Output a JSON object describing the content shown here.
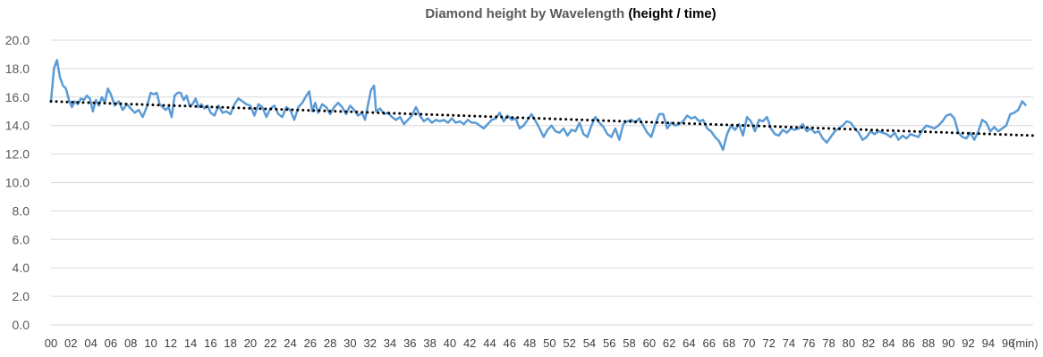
{
  "chart_data": {
    "type": "line",
    "title": "Diamond height by Wavelength",
    "title_suffix": "(height / time)",
    "x_unit_label": "(min)",
    "ylim": [
      0,
      20
    ],
    "yticks": [
      "0.0",
      "2.0",
      "4.0",
      "6.0",
      "8.0",
      "10.0",
      "12.0",
      "14.0",
      "16.0",
      "18.0",
      "20.0"
    ],
    "xticks": [
      "00",
      "02",
      "04",
      "06",
      "08",
      "10",
      "12",
      "14",
      "16",
      "18",
      "20",
      "22",
      "24",
      "26",
      "28",
      "30",
      "32",
      "34",
      "36",
      "38",
      "40",
      "42",
      "44",
      "46",
      "48",
      "50",
      "52",
      "54",
      "56",
      "58",
      "60",
      "62",
      "64",
      "66",
      "68",
      "70",
      "72",
      "74",
      "76",
      "78",
      "80",
      "82",
      "84",
      "86",
      "88",
      "90",
      "92",
      "94",
      "96"
    ],
    "xlim": [
      0,
      98.5
    ],
    "grid": true,
    "series": [
      {
        "color": "#5b9bd5",
        "points": [
          [
            0,
            15.7
          ],
          [
            0.3,
            18.0
          ],
          [
            0.6,
            18.6
          ],
          [
            0.9,
            17.4
          ],
          [
            1.2,
            16.8
          ],
          [
            1.5,
            16.6
          ],
          [
            1.8,
            15.8
          ],
          [
            2.1,
            15.3
          ],
          [
            2.4,
            15.7
          ],
          [
            2.7,
            15.5
          ],
          [
            3.0,
            15.9
          ],
          [
            3.3,
            15.8
          ],
          [
            3.6,
            16.1
          ],
          [
            3.9,
            15.9
          ],
          [
            4.2,
            15.0
          ],
          [
            4.5,
            15.8
          ],
          [
            4.8,
            15.4
          ],
          [
            5.1,
            16.0
          ],
          [
            5.4,
            15.6
          ],
          [
            5.7,
            16.6
          ],
          [
            6.0,
            16.2
          ],
          [
            6.4,
            15.4
          ],
          [
            6.8,
            15.7
          ],
          [
            7.2,
            15.1
          ],
          [
            7.6,
            15.5
          ],
          [
            8.0,
            15.2
          ],
          [
            8.4,
            14.9
          ],
          [
            8.8,
            15.1
          ],
          [
            9.2,
            14.6
          ],
          [
            9.6,
            15.3
          ],
          [
            10.0,
            16.3
          ],
          [
            10.3,
            16.2
          ],
          [
            10.6,
            16.3
          ],
          [
            10.9,
            15.5
          ],
          [
            11.2,
            15.3
          ],
          [
            11.5,
            15.1
          ],
          [
            11.8,
            15.3
          ],
          [
            12.1,
            14.6
          ],
          [
            12.4,
            16.1
          ],
          [
            12.7,
            16.3
          ],
          [
            13.0,
            16.3
          ],
          [
            13.3,
            15.8
          ],
          [
            13.6,
            16.1
          ],
          [
            13.9,
            15.4
          ],
          [
            14.2,
            15.5
          ],
          [
            14.5,
            15.9
          ],
          [
            14.8,
            15.3
          ],
          [
            15.1,
            15.5
          ],
          [
            15.4,
            15.2
          ],
          [
            15.7,
            15.4
          ],
          [
            16.0,
            14.9
          ],
          [
            16.4,
            14.7
          ],
          [
            16.8,
            15.4
          ],
          [
            17.2,
            14.9
          ],
          [
            17.6,
            15.0
          ],
          [
            18.0,
            14.8
          ],
          [
            18.4,
            15.5
          ],
          [
            18.8,
            15.9
          ],
          [
            19.2,
            15.7
          ],
          [
            19.6,
            15.5
          ],
          [
            20.0,
            15.4
          ],
          [
            20.4,
            14.7
          ],
          [
            20.8,
            15.5
          ],
          [
            21.2,
            15.3
          ],
          [
            21.6,
            14.6
          ],
          [
            22.0,
            15.2
          ],
          [
            22.4,
            15.4
          ],
          [
            22.8,
            14.8
          ],
          [
            23.2,
            14.6
          ],
          [
            23.6,
            15.3
          ],
          [
            24.0,
            15.1
          ],
          [
            24.4,
            14.4
          ],
          [
            24.8,
            15.3
          ],
          [
            25.2,
            15.6
          ],
          [
            25.6,
            16.1
          ],
          [
            25.9,
            16.4
          ],
          [
            26.2,
            15.0
          ],
          [
            26.5,
            15.6
          ],
          [
            26.8,
            14.9
          ],
          [
            27.2,
            15.5
          ],
          [
            27.6,
            15.3
          ],
          [
            28.0,
            14.8
          ],
          [
            28.4,
            15.3
          ],
          [
            28.8,
            15.6
          ],
          [
            29.2,
            15.3
          ],
          [
            29.6,
            14.8
          ],
          [
            30.0,
            15.4
          ],
          [
            30.4,
            15.1
          ],
          [
            30.8,
            14.7
          ],
          [
            31.2,
            14.9
          ],
          [
            31.5,
            14.4
          ],
          [
            31.8,
            15.5
          ],
          [
            32.1,
            16.5
          ],
          [
            32.4,
            16.8
          ],
          [
            32.6,
            15.0
          ],
          [
            33.0,
            15.2
          ],
          [
            33.4,
            14.8
          ],
          [
            33.8,
            14.9
          ],
          [
            34.2,
            14.6
          ],
          [
            34.6,
            14.4
          ],
          [
            35.0,
            14.6
          ],
          [
            35.4,
            14.1
          ],
          [
            35.8,
            14.4
          ],
          [
            36.2,
            14.7
          ],
          [
            36.6,
            15.3
          ],
          [
            37.0,
            14.7
          ],
          [
            37.4,
            14.3
          ],
          [
            37.8,
            14.5
          ],
          [
            38.2,
            14.2
          ],
          [
            38.6,
            14.4
          ],
          [
            39.0,
            14.3
          ],
          [
            39.4,
            14.4
          ],
          [
            39.8,
            14.2
          ],
          [
            40.2,
            14.5
          ],
          [
            40.6,
            14.2
          ],
          [
            41.0,
            14.3
          ],
          [
            41.4,
            14.1
          ],
          [
            41.8,
            14.4
          ],
          [
            42.2,
            14.2
          ],
          [
            42.6,
            14.2
          ],
          [
            43.0,
            14.0
          ],
          [
            43.4,
            13.8
          ],
          [
            43.8,
            14.1
          ],
          [
            44.2,
            14.4
          ],
          [
            44.6,
            14.5
          ],
          [
            45.0,
            14.9
          ],
          [
            45.4,
            14.3
          ],
          [
            45.8,
            14.7
          ],
          [
            46.2,
            14.4
          ],
          [
            46.6,
            14.5
          ],
          [
            47.0,
            13.8
          ],
          [
            47.4,
            14.0
          ],
          [
            47.8,
            14.4
          ],
          [
            48.2,
            14.8
          ],
          [
            48.6,
            14.3
          ],
          [
            49.0,
            13.8
          ],
          [
            49.4,
            13.2
          ],
          [
            49.8,
            13.7
          ],
          [
            50.2,
            14.0
          ],
          [
            50.6,
            13.6
          ],
          [
            51.0,
            13.5
          ],
          [
            51.4,
            13.8
          ],
          [
            51.8,
            13.3
          ],
          [
            52.2,
            13.7
          ],
          [
            52.6,
            13.6
          ],
          [
            53.0,
            14.2
          ],
          [
            53.4,
            13.4
          ],
          [
            53.8,
            13.2
          ],
          [
            54.2,
            14.0
          ],
          [
            54.6,
            14.6
          ],
          [
            55.0,
            14.2
          ],
          [
            55.4,
            13.9
          ],
          [
            55.8,
            13.4
          ],
          [
            56.2,
            13.2
          ],
          [
            56.6,
            13.8
          ],
          [
            57.0,
            13.0
          ],
          [
            57.4,
            14.1
          ],
          [
            57.8,
            14.3
          ],
          [
            58.2,
            14.4
          ],
          [
            58.6,
            14.2
          ],
          [
            59.0,
            14.5
          ],
          [
            59.4,
            14.0
          ],
          [
            59.8,
            13.5
          ],
          [
            60.2,
            13.2
          ],
          [
            60.6,
            14.1
          ],
          [
            61.0,
            14.8
          ],
          [
            61.4,
            14.8
          ],
          [
            61.8,
            13.8
          ],
          [
            62.2,
            14.2
          ],
          [
            62.6,
            14.0
          ],
          [
            63.0,
            14.1
          ],
          [
            63.4,
            14.3
          ],
          [
            63.8,
            14.7
          ],
          [
            64.2,
            14.5
          ],
          [
            64.6,
            14.6
          ],
          [
            65.0,
            14.3
          ],
          [
            65.4,
            14.4
          ],
          [
            65.8,
            13.8
          ],
          [
            66.2,
            13.6
          ],
          [
            66.6,
            13.2
          ],
          [
            67.0,
            12.9
          ],
          [
            67.4,
            12.3
          ],
          [
            67.8,
            13.4
          ],
          [
            68.2,
            14.0
          ],
          [
            68.6,
            13.7
          ],
          [
            69.0,
            14.1
          ],
          [
            69.4,
            13.3
          ],
          [
            69.8,
            14.6
          ],
          [
            70.2,
            14.3
          ],
          [
            70.6,
            13.6
          ],
          [
            71.0,
            14.4
          ],
          [
            71.4,
            14.3
          ],
          [
            71.8,
            14.6
          ],
          [
            72.2,
            13.8
          ],
          [
            72.6,
            13.4
          ],
          [
            73.0,
            13.3
          ],
          [
            73.4,
            13.7
          ],
          [
            73.8,
            13.5
          ],
          [
            74.2,
            13.8
          ],
          [
            74.6,
            13.7
          ],
          [
            75.0,
            13.8
          ],
          [
            75.4,
            14.1
          ],
          [
            75.8,
            13.6
          ],
          [
            76.2,
            13.8
          ],
          [
            76.6,
            13.5
          ],
          [
            77.0,
            13.6
          ],
          [
            77.4,
            13.1
          ],
          [
            77.8,
            12.8
          ],
          [
            78.2,
            13.2
          ],
          [
            78.6,
            13.6
          ],
          [
            79.0,
            13.8
          ],
          [
            79.4,
            14.0
          ],
          [
            79.8,
            14.3
          ],
          [
            80.2,
            14.2
          ],
          [
            80.6,
            13.8
          ],
          [
            81.0,
            13.5
          ],
          [
            81.4,
            13.0
          ],
          [
            81.8,
            13.2
          ],
          [
            82.2,
            13.6
          ],
          [
            82.6,
            13.4
          ],
          [
            83.0,
            13.6
          ],
          [
            83.4,
            13.5
          ],
          [
            83.8,
            13.4
          ],
          [
            84.2,
            13.2
          ],
          [
            84.6,
            13.5
          ],
          [
            85.0,
            13.0
          ],
          [
            85.4,
            13.3
          ],
          [
            85.8,
            13.1
          ],
          [
            86.2,
            13.4
          ],
          [
            86.6,
            13.3
          ],
          [
            87.0,
            13.2
          ],
          [
            87.4,
            13.7
          ],
          [
            87.8,
            14.0
          ],
          [
            88.2,
            13.9
          ],
          [
            88.6,
            13.8
          ],
          [
            89.0,
            14.0
          ],
          [
            89.4,
            14.3
          ],
          [
            89.8,
            14.7
          ],
          [
            90.2,
            14.8
          ],
          [
            90.6,
            14.5
          ],
          [
            91.0,
            13.5
          ],
          [
            91.4,
            13.2
          ],
          [
            91.8,
            13.1
          ],
          [
            92.2,
            13.5
          ],
          [
            92.6,
            13.0
          ],
          [
            93.0,
            13.6
          ],
          [
            93.4,
            14.4
          ],
          [
            93.8,
            14.2
          ],
          [
            94.2,
            13.6
          ],
          [
            94.6,
            13.9
          ],
          [
            95.0,
            13.6
          ],
          [
            95.4,
            13.8
          ],
          [
            95.8,
            14.0
          ],
          [
            96.2,
            14.8
          ],
          [
            96.6,
            14.9
          ],
          [
            97.0,
            15.1
          ],
          [
            97.4,
            15.7
          ],
          [
            97.8,
            15.4
          ]
        ]
      }
    ],
    "trendline": {
      "style": "dotted",
      "color": "#000000",
      "start": [
        0,
        15.7
      ],
      "end": [
        98.5,
        13.3
      ]
    }
  }
}
